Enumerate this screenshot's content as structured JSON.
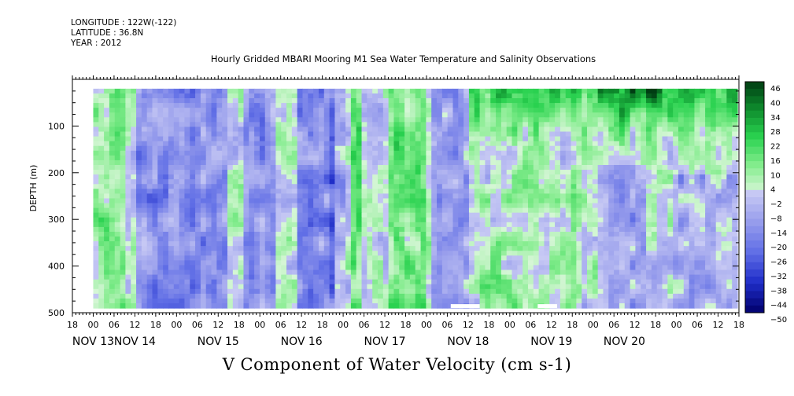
{
  "header": {
    "longitude": "LONGITUDE : 122W(-122)",
    "latitude": "LATITUDE : 36.8N",
    "year": "YEAR : 2012"
  },
  "chart_data": {
    "type": "heatmap",
    "title": "Hourly Gridded MBARI Mooring M1 Sea Water Temperature and Salinity Observations",
    "xlabel": "",
    "ylabel": "DEPTH (m)",
    "bottom_caption": "V Component of Water Velocity (cm s-1)",
    "x_hour_ticks": [
      "18",
      "00",
      "06",
      "12",
      "18",
      "00",
      "06",
      "12",
      "18",
      "00",
      "06",
      "12",
      "18",
      "00",
      "06",
      "12",
      "18",
      "00",
      "06",
      "12",
      "18",
      "00",
      "06",
      "12",
      "18",
      "00",
      "06",
      "12",
      "18",
      "00",
      "06",
      "12",
      "18"
    ],
    "x_day_labels": [
      {
        "label": "NOV 13",
        "tick_index": 1
      },
      {
        "label": "NOV 14",
        "tick_index": 3
      },
      {
        "label": "NOV 15",
        "tick_index": 7
      },
      {
        "label": "NOV 16",
        "tick_index": 11
      },
      {
        "label": "NOV 17",
        "tick_index": 15
      },
      {
        "label": "NOV 18",
        "tick_index": 19
      },
      {
        "label": "NOV 19",
        "tick_index": 23
      },
      {
        "label": "NOV 20",
        "tick_index": 26.5
      }
    ],
    "x_range_hours": [
      "2012-11-12T18:00",
      "2012-11-20T18:00"
    ],
    "data_start": "2012-11-13T00:00",
    "y_ticks": [
      100,
      200,
      300,
      400,
      500
    ],
    "ylim": [
      500,
      0
    ],
    "depth_data_range": [
      20,
      490
    ],
    "colorbar": {
      "levels": [
        "46",
        "40",
        "34",
        "28",
        "22",
        "16",
        "10",
        "4",
        "-2",
        "-8",
        "-14",
        "-20",
        "-26",
        "-32",
        "-38",
        "-44",
        "-50"
      ],
      "min": -50,
      "max": 46,
      "step": 3
    },
    "features": [
      {
        "day_hour": "13/00-13/06",
        "depth": "20-490",
        "value": 8
      },
      {
        "day_hour": "13/12-14/12",
        "depth": "100-400",
        "value": -18
      },
      {
        "day_hour": "15/00-15/06",
        "depth": "20-490",
        "value": -15
      },
      {
        "day_hour": "15/18-16/00",
        "depth": "20-490",
        "value": -22
      },
      {
        "day_hour": "16/06",
        "depth": "20-490",
        "value": 14
      },
      {
        "day_hour": "16/18-17/00",
        "depth": "20-490",
        "value": 12
      },
      {
        "day_hour": "17/12-20/18",
        "depth": "20-150",
        "value": 26
      },
      {
        "day_hour": "19/12-20/00",
        "depth": "20-80",
        "value": 40
      },
      {
        "day_hour": "18/00-18/12",
        "depth": "200-400",
        "value": 14
      }
    ]
  },
  "colors": {
    "negative_max": "#00006b",
    "zero": "#d8d8f4",
    "positive_max": "#003d13"
  }
}
